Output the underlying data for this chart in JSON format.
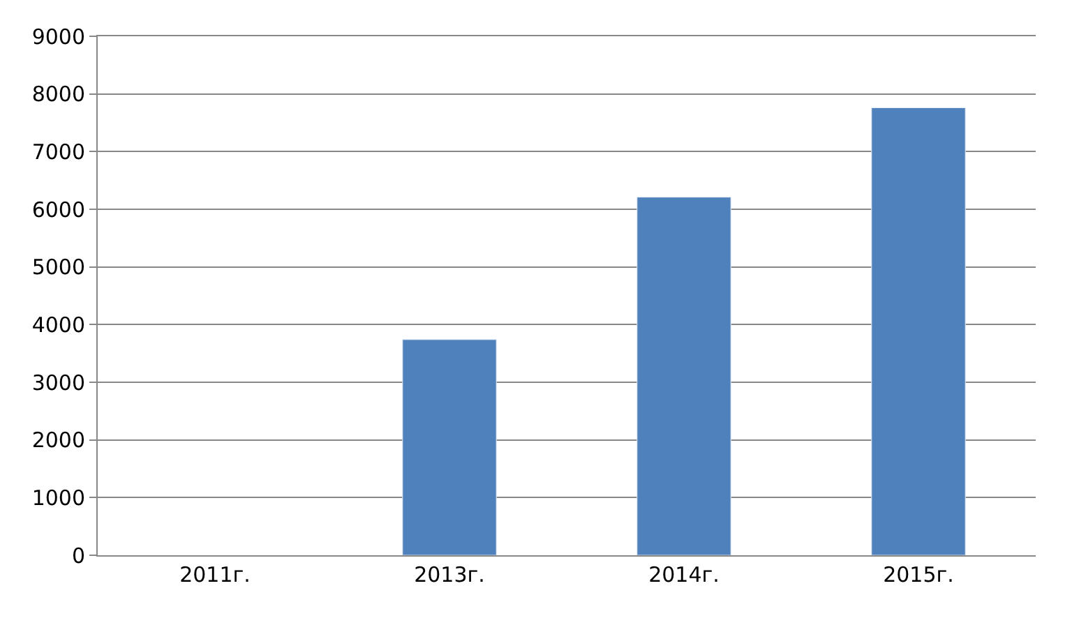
{
  "chart_data": {
    "type": "bar",
    "categories": [
      "2011г.",
      "2013г.",
      "2014г.",
      "2015г."
    ],
    "values": [
      null,
      3740,
      6210,
      7760
    ],
    "color": "#4f81bd",
    "ylim": [
      0,
      9000
    ],
    "yticks": [
      0,
      1000,
      2000,
      3000,
      4000,
      5000,
      6000,
      7000,
      8000,
      9000
    ],
    "grid": "y"
  }
}
